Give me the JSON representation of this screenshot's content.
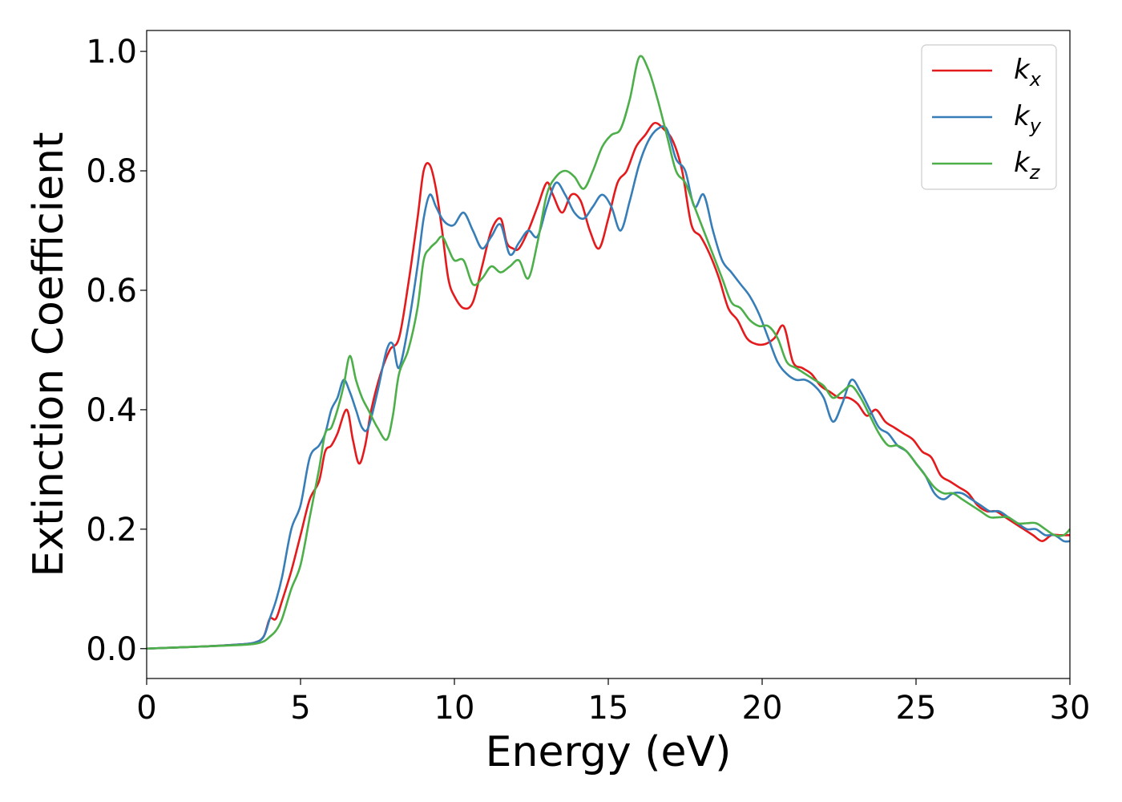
{
  "chart_data": {
    "type": "line",
    "xlabel": "Energy (eV)",
    "ylabel": "Extinction Coefficient",
    "xlim": [
      0,
      30
    ],
    "ylim": [
      -0.05,
      1.035
    ],
    "xticks": [
      0,
      5,
      10,
      15,
      20,
      25,
      30
    ],
    "xtick_labels": [
      "0",
      "5",
      "10",
      "15",
      "20",
      "25",
      "30"
    ],
    "yticks": [
      0.0,
      0.2,
      0.4,
      0.6,
      0.8,
      1.0
    ],
    "ytick_labels": [
      "0.0",
      "0.2",
      "0.4",
      "0.6",
      "0.8",
      "1.0"
    ],
    "grid": false,
    "legend_position": "top-right",
    "series": [
      {
        "name": "k_x",
        "label_main": "k",
        "label_sub": "x",
        "color": "#e41a1c",
        "x": [
          0,
          1,
          2,
          3,
          3.5,
          3.8,
          4.0,
          4.2,
          4.4,
          4.7,
          5.0,
          5.3,
          5.6,
          5.8,
          6.0,
          6.2,
          6.5,
          6.7,
          6.9,
          7.1,
          7.3,
          7.6,
          7.9,
          8.2,
          8.5,
          8.8,
          9.0,
          9.2,
          9.4,
          9.6,
          9.8,
          10.0,
          10.3,
          10.6,
          10.9,
          11.2,
          11.5,
          11.7,
          11.9,
          12.1,
          12.4,
          12.7,
          13.0,
          13.2,
          13.5,
          13.8,
          14.1,
          14.4,
          14.7,
          15.0,
          15.3,
          15.6,
          15.9,
          16.2,
          16.5,
          16.8,
          17.1,
          17.4,
          17.7,
          18.0,
          18.3,
          18.6,
          18.9,
          19.2,
          19.5,
          19.8,
          20.1,
          20.4,
          20.7,
          21.0,
          21.3,
          21.6,
          21.9,
          22.2,
          22.5,
          22.8,
          23.1,
          23.4,
          23.7,
          24.0,
          24.3,
          24.6,
          24.9,
          25.2,
          25.5,
          25.8,
          26.1,
          26.4,
          26.7,
          27.0,
          27.3,
          27.6,
          27.9,
          28.2,
          28.5,
          28.8,
          29.1,
          29.4,
          29.7,
          30.0
        ],
        "y": [
          0.0,
          0.002,
          0.004,
          0.007,
          0.01,
          0.02,
          0.05,
          0.05,
          0.08,
          0.13,
          0.19,
          0.25,
          0.28,
          0.33,
          0.34,
          0.36,
          0.4,
          0.35,
          0.31,
          0.34,
          0.4,
          0.46,
          0.5,
          0.52,
          0.61,
          0.72,
          0.8,
          0.81,
          0.77,
          0.7,
          0.62,
          0.59,
          0.57,
          0.58,
          0.64,
          0.7,
          0.72,
          0.68,
          0.67,
          0.67,
          0.7,
          0.74,
          0.78,
          0.76,
          0.73,
          0.76,
          0.75,
          0.7,
          0.67,
          0.72,
          0.78,
          0.8,
          0.84,
          0.86,
          0.88,
          0.87,
          0.85,
          0.8,
          0.71,
          0.69,
          0.66,
          0.62,
          0.57,
          0.55,
          0.52,
          0.51,
          0.51,
          0.52,
          0.54,
          0.48,
          0.47,
          0.46,
          0.44,
          0.43,
          0.42,
          0.42,
          0.41,
          0.39,
          0.4,
          0.38,
          0.37,
          0.36,
          0.35,
          0.33,
          0.32,
          0.29,
          0.28,
          0.27,
          0.26,
          0.24,
          0.23,
          0.23,
          0.22,
          0.21,
          0.2,
          0.19,
          0.18,
          0.19,
          0.19,
          0.19
        ]
      },
      {
        "name": "k_y",
        "label_main": "k",
        "label_sub": "y",
        "color": "#377eb8",
        "x": [
          0,
          1,
          2,
          3,
          3.5,
          3.8,
          4.0,
          4.2,
          4.4,
          4.7,
          5.0,
          5.3,
          5.6,
          5.8,
          6.0,
          6.2,
          6.4,
          6.6,
          6.8,
          7.0,
          7.2,
          7.5,
          7.8,
          8.0,
          8.2,
          8.5,
          8.8,
          9.0,
          9.2,
          9.4,
          9.6,
          9.8,
          10.0,
          10.3,
          10.6,
          10.9,
          11.2,
          11.5,
          11.8,
          12.1,
          12.4,
          12.7,
          13.0,
          13.3,
          13.6,
          13.9,
          14.2,
          14.5,
          14.8,
          15.1,
          15.4,
          15.7,
          16.0,
          16.3,
          16.6,
          16.9,
          17.2,
          17.5,
          17.8,
          18.1,
          18.4,
          18.7,
          19.0,
          19.3,
          19.6,
          19.9,
          20.2,
          20.5,
          20.8,
          21.1,
          21.4,
          21.7,
          22.0,
          22.3,
          22.6,
          22.9,
          23.2,
          23.5,
          23.8,
          24.1,
          24.4,
          24.7,
          25.0,
          25.3,
          25.6,
          25.9,
          26.2,
          26.5,
          26.8,
          27.1,
          27.4,
          27.7,
          28.0,
          28.3,
          28.6,
          28.9,
          29.2,
          29.5,
          29.8,
          30.0
        ],
        "y": [
          0.0,
          0.002,
          0.004,
          0.007,
          0.01,
          0.02,
          0.05,
          0.08,
          0.12,
          0.2,
          0.24,
          0.32,
          0.34,
          0.36,
          0.4,
          0.42,
          0.45,
          0.43,
          0.4,
          0.37,
          0.37,
          0.43,
          0.5,
          0.51,
          0.47,
          0.54,
          0.64,
          0.72,
          0.76,
          0.74,
          0.72,
          0.71,
          0.71,
          0.73,
          0.7,
          0.67,
          0.69,
          0.71,
          0.66,
          0.68,
          0.7,
          0.69,
          0.74,
          0.78,
          0.76,
          0.73,
          0.72,
          0.74,
          0.76,
          0.74,
          0.7,
          0.75,
          0.81,
          0.85,
          0.87,
          0.87,
          0.82,
          0.8,
          0.74,
          0.76,
          0.7,
          0.65,
          0.63,
          0.61,
          0.59,
          0.56,
          0.52,
          0.48,
          0.46,
          0.45,
          0.45,
          0.44,
          0.42,
          0.38,
          0.41,
          0.45,
          0.43,
          0.4,
          0.37,
          0.36,
          0.34,
          0.33,
          0.31,
          0.29,
          0.26,
          0.25,
          0.26,
          0.26,
          0.25,
          0.24,
          0.23,
          0.23,
          0.22,
          0.21,
          0.2,
          0.2,
          0.19,
          0.19,
          0.18,
          0.18
        ]
      },
      {
        "name": "k_z",
        "label_main": "k",
        "label_sub": "z",
        "color": "#4daf4a",
        "x": [
          0,
          1,
          2,
          3,
          3.5,
          3.8,
          4.0,
          4.2,
          4.4,
          4.7,
          5.0,
          5.3,
          5.6,
          5.8,
          6.0,
          6.2,
          6.4,
          6.6,
          6.8,
          7.0,
          7.2,
          7.5,
          7.8,
          8.0,
          8.2,
          8.5,
          8.8,
          9.0,
          9.2,
          9.4,
          9.6,
          9.8,
          10.0,
          10.3,
          10.6,
          10.9,
          11.2,
          11.5,
          11.8,
          12.1,
          12.4,
          12.7,
          13.0,
          13.3,
          13.6,
          13.9,
          14.2,
          14.5,
          14.8,
          15.1,
          15.4,
          15.7,
          16.0,
          16.3,
          16.6,
          16.9,
          17.2,
          17.5,
          17.8,
          18.1,
          18.4,
          18.7,
          19.0,
          19.3,
          19.6,
          19.9,
          20.2,
          20.5,
          20.8,
          21.1,
          21.4,
          21.7,
          22.0,
          22.3,
          22.6,
          22.9,
          23.2,
          23.5,
          23.8,
          24.1,
          24.4,
          24.7,
          25.0,
          25.3,
          25.6,
          25.9,
          26.2,
          26.5,
          26.8,
          27.1,
          27.4,
          27.7,
          28.0,
          28.3,
          28.6,
          28.9,
          29.2,
          29.5,
          29.8,
          30.0
        ],
        "y": [
          0.0,
          0.002,
          0.004,
          0.006,
          0.008,
          0.012,
          0.02,
          0.03,
          0.05,
          0.1,
          0.14,
          0.22,
          0.3,
          0.36,
          0.37,
          0.4,
          0.44,
          0.49,
          0.45,
          0.42,
          0.4,
          0.37,
          0.35,
          0.39,
          0.46,
          0.5,
          0.57,
          0.65,
          0.67,
          0.68,
          0.69,
          0.67,
          0.65,
          0.65,
          0.61,
          0.62,
          0.64,
          0.63,
          0.64,
          0.65,
          0.62,
          0.68,
          0.76,
          0.79,
          0.8,
          0.79,
          0.77,
          0.8,
          0.84,
          0.86,
          0.87,
          0.92,
          0.99,
          0.97,
          0.92,
          0.86,
          0.8,
          0.78,
          0.74,
          0.7,
          0.66,
          0.62,
          0.58,
          0.57,
          0.55,
          0.54,
          0.54,
          0.52,
          0.48,
          0.47,
          0.46,
          0.45,
          0.44,
          0.42,
          0.43,
          0.44,
          0.42,
          0.39,
          0.36,
          0.34,
          0.34,
          0.33,
          0.31,
          0.29,
          0.27,
          0.26,
          0.26,
          0.25,
          0.24,
          0.23,
          0.22,
          0.22,
          0.22,
          0.21,
          0.21,
          0.21,
          0.2,
          0.19,
          0.19,
          0.2
        ]
      }
    ]
  }
}
